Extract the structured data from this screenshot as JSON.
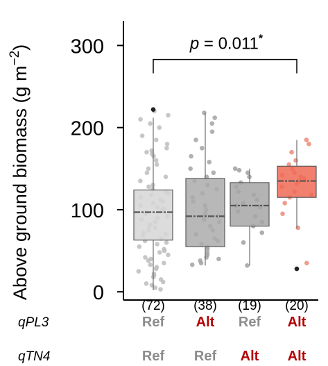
{
  "chart_data": {
    "type": "box",
    "ylabel_main": "Above ground biomass (g m",
    "ylabel_sup": "−2",
    "ylabel_close": ")",
    "ylim": [
      -10,
      330
    ],
    "yticks": [
      0,
      100,
      200,
      300
    ],
    "ytick_labels": [
      "0",
      "100",
      "200",
      "300"
    ],
    "groups": [
      {
        "n_label": "(72)",
        "color": "#d6d6d6",
        "point_color": "#bdbdbd",
        "box": {
          "whisker_low": 2,
          "q1": 63,
          "median": 97,
          "q3": 124,
          "whisker_high": 212
        },
        "outliers": [
          222
        ],
        "points": [
          3,
          5,
          8,
          10,
          12,
          15,
          18,
          20,
          22,
          25,
          28,
          30,
          33,
          35,
          38,
          40,
          42,
          45,
          48,
          50,
          52,
          55,
          58,
          60,
          62,
          65,
          68,
          70,
          72,
          75,
          78,
          80,
          82,
          85,
          88,
          90,
          92,
          95,
          97,
          99,
          101,
          103,
          105,
          108,
          110,
          112,
          115,
          118,
          120,
          122,
          125,
          128,
          130,
          135,
          140,
          145,
          150,
          155,
          160,
          165,
          170,
          175,
          180,
          190,
          200,
          210,
          215,
          220,
          205,
          185,
          172,
          168
        ]
      },
      {
        "n_label": "(38)",
        "color": "#ababab",
        "point_color": "#a3a3a3",
        "box": {
          "whisker_low": 32,
          "q1": 55,
          "median": 92,
          "q3": 138,
          "whisker_high": 218
        },
        "outliers": [],
        "points": [
          33,
          35,
          38,
          40,
          42,
          45,
          48,
          52,
          55,
          58,
          62,
          65,
          70,
          75,
          80,
          85,
          88,
          92,
          95,
          100,
          105,
          110,
          115,
          120,
          125,
          130,
          135,
          140,
          145,
          150,
          158,
          165,
          175,
          185,
          195,
          205,
          212,
          218
        ]
      },
      {
        "n_label": "(19)",
        "color": "#a6a6a6",
        "point_color": "#a0a0a0",
        "box": {
          "whisker_low": 32,
          "q1": 80,
          "median": 105,
          "q3": 133,
          "whisker_high": 150
        },
        "outliers": [],
        "points": [
          32,
          60,
          72,
          80,
          85,
          92,
          98,
          103,
          105,
          108,
          112,
          118,
          122,
          128,
          133,
          140,
          145,
          148,
          150
        ]
      },
      {
        "n_label": "(20)",
        "color": "#f06a55",
        "point_color": "#ee8a7a",
        "box": {
          "whisker_low": 77,
          "q1": 115,
          "median": 135,
          "q3": 153,
          "whisker_high": 185
        },
        "outliers": [
          28
        ],
        "points": [
          35,
          78,
          95,
          108,
          115,
          118,
          122,
          128,
          132,
          135,
          138,
          140,
          142,
          145,
          150,
          155,
          160,
          170,
          180,
          185
        ]
      }
    ],
    "annotation": {
      "p_italic": "p",
      "p_rest": " = 0.011",
      "star": "*",
      "from_group": 0,
      "to_group": 3,
      "y": 283
    },
    "genotype_rows": [
      {
        "label": "qPL3",
        "values": [
          "Ref",
          "Alt",
          "Ref",
          "Alt"
        ]
      },
      {
        "label": "qTN4",
        "values": [
          "Ref",
          "Ref",
          "Alt",
          "Alt"
        ]
      }
    ],
    "genotype_colors": {
      "Ref": "#8c8c8c",
      "Alt": "#b40000"
    }
  }
}
